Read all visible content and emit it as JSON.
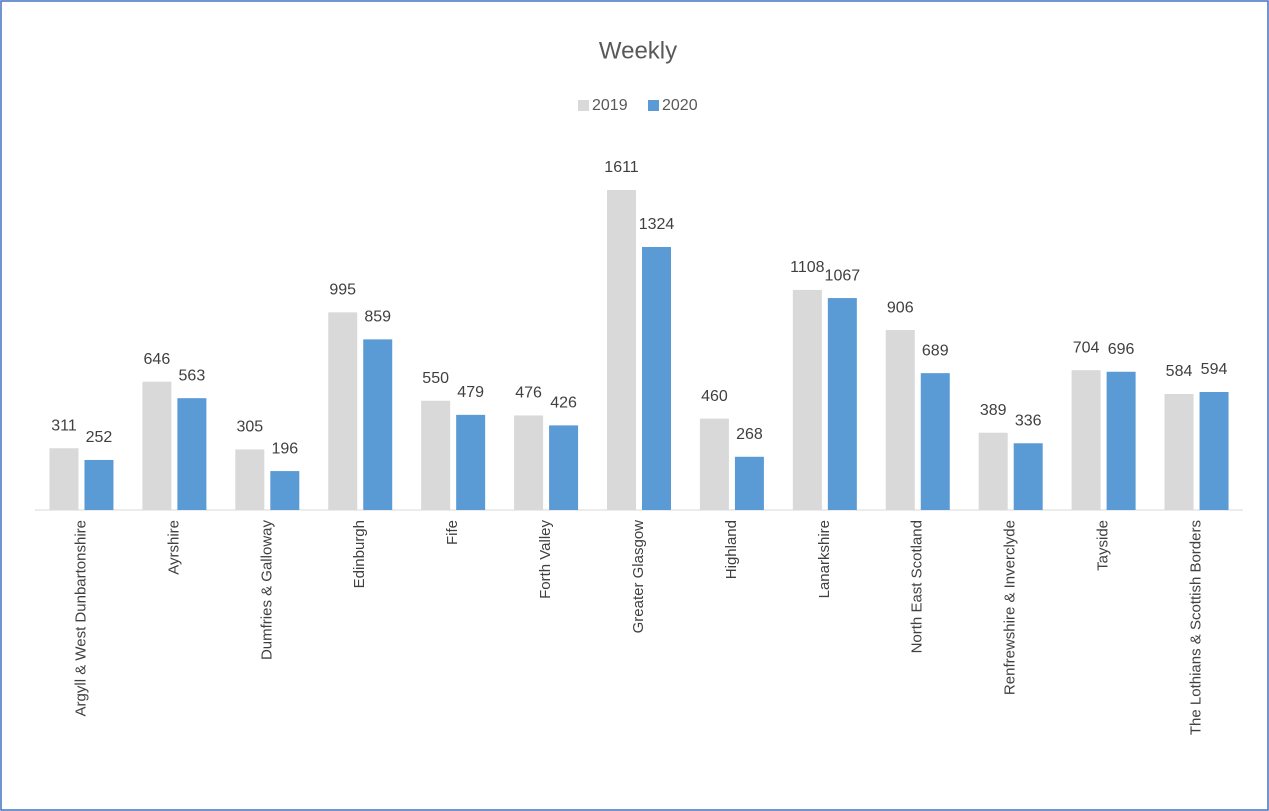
{
  "chart_data": {
    "type": "bar",
    "title": "Weekly",
    "categories": [
      "Argyll & West Dunbartonshire",
      "Ayrshire",
      "Dumfries & Galloway",
      "Edinburgh",
      "Fife",
      "Forth Valley",
      "Greater Glasgow",
      "Highland",
      "Lanarkshire",
      "North East Scotland",
      "Renfrewshire & Inverclyde",
      "Tayside",
      "The Lothians & Scottish Borders"
    ],
    "series": [
      {
        "name": "2019",
        "color": "#d9d9d9",
        "values": [
          311,
          646,
          305,
          995,
          550,
          476,
          1611,
          460,
          1108,
          906,
          389,
          704,
          584
        ]
      },
      {
        "name": "2020",
        "color": "#5b9bd5",
        "values": [
          252,
          563,
          196,
          859,
          479,
          426,
          1324,
          268,
          1067,
          689,
          336,
          696,
          594
        ]
      }
    ],
    "legend": "top"
  }
}
